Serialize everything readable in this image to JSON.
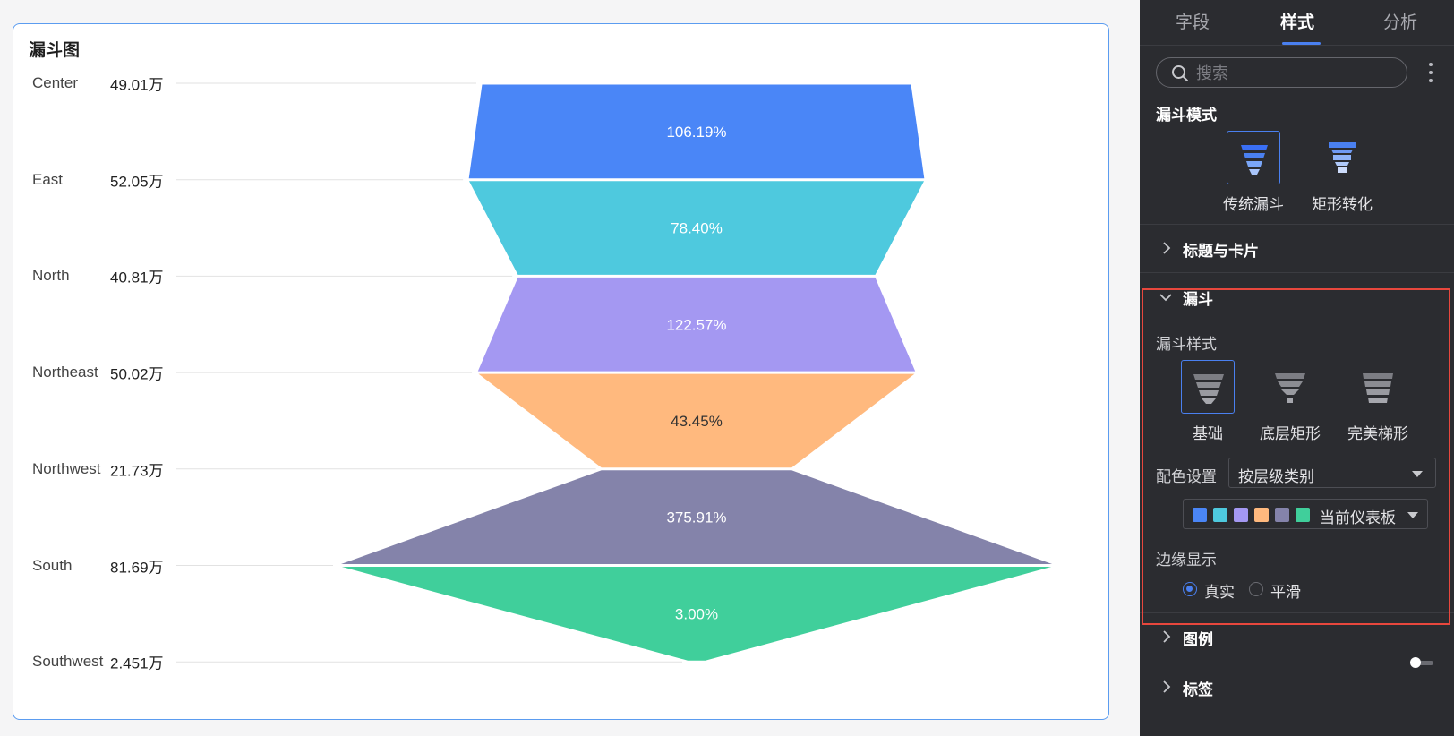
{
  "card": {
    "title": "漏斗图"
  },
  "chart_data": {
    "type": "funnel",
    "title": "漏斗图",
    "categories": [
      "Center",
      "East",
      "North",
      "Northeast",
      "Northwest",
      "South",
      "Southwest"
    ],
    "values": [
      49.01,
      52.05,
      40.81,
      50.02,
      21.73,
      81.69,
      2.451
    ],
    "value_labels": [
      "49.01万",
      "52.05万",
      "40.81万",
      "50.02万",
      "21.73万",
      "81.69万",
      "2.451万"
    ],
    "unit": "万",
    "conversion_rates": [
      "106.19%",
      "78.40%",
      "122.57%",
      "43.45%",
      "375.91%",
      "3.00%"
    ],
    "colors": [
      "#4a86f7",
      "#4ec9de",
      "#a498f2",
      "#ffb97e",
      "#8483aa",
      "#40cf9b"
    ],
    "rate_label_colors": [
      "#ffffff",
      "#ffffff",
      "#ffffff",
      "#333333",
      "#ffffff",
      "#ffffff"
    ]
  },
  "panel": {
    "tabs": [
      {
        "label": "字段",
        "active": false
      },
      {
        "label": "样式",
        "active": true
      },
      {
        "label": "分析",
        "active": false
      }
    ],
    "search_placeholder": "搜索",
    "funnel_mode": {
      "title": "漏斗模式",
      "options": [
        {
          "label": "传统漏斗",
          "selected": true
        },
        {
          "label": "矩形转化",
          "selected": false
        }
      ]
    },
    "title_card_section": "标题与卡片",
    "funnel_section": {
      "title": "漏斗",
      "style_label": "漏斗样式",
      "styles": [
        {
          "label": "基础",
          "selected": true
        },
        {
          "label": "底层矩形",
          "selected": false
        },
        {
          "label": "完美梯形",
          "selected": false
        }
      ],
      "color_label": "配色设置",
      "color_mode": "按层级类别",
      "palette_name": "当前仪表板",
      "palette": [
        "#4a86f7",
        "#4ec9de",
        "#a498f2",
        "#ffb97e",
        "#8483aa",
        "#40cf9b"
      ],
      "edge_label": "边缘显示",
      "edge_options": [
        {
          "label": "真实",
          "selected": true
        },
        {
          "label": "平滑",
          "selected": false
        }
      ]
    },
    "legend_section": "图例",
    "legend_enabled": false,
    "label_section": "标签"
  }
}
